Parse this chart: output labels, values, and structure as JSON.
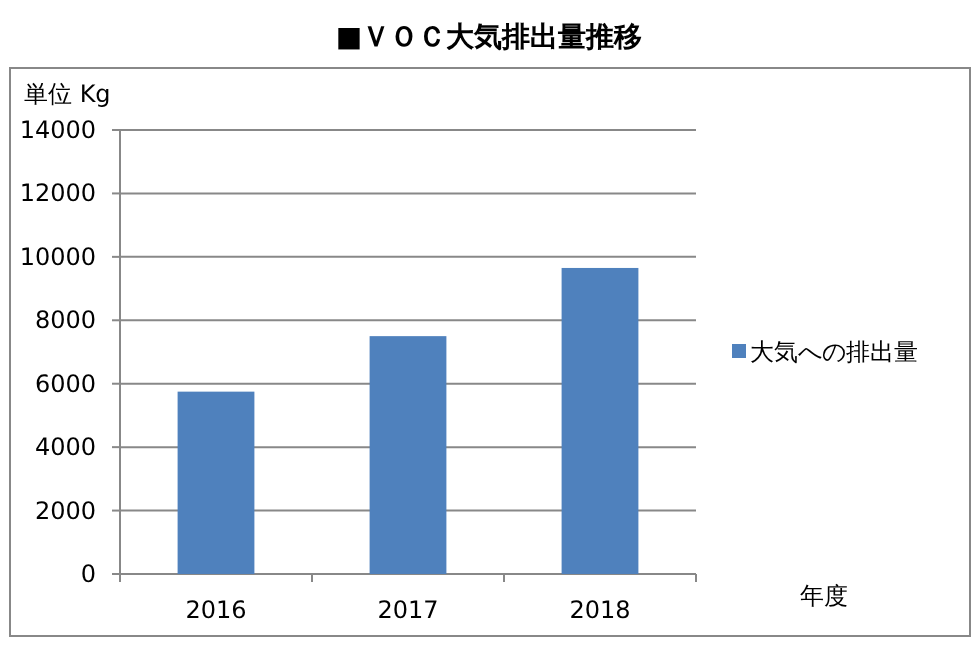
{
  "chart_data": {
    "type": "bar",
    "title": "■ＶＯＣ大気排出量推移",
    "ylabel": "単位 Kg",
    "xlabel": "年度",
    "categories": [
      "2016",
      "2017",
      "2018"
    ],
    "series": [
      {
        "name": "大気への排出量",
        "color": "#4f81bd",
        "values": [
          5750,
          7500,
          9650
        ]
      }
    ],
    "ylim": [
      0,
      14000
    ],
    "yticks": [
      0,
      2000,
      4000,
      6000,
      8000,
      10000,
      12000,
      14000
    ],
    "grid": "y",
    "legend": "right"
  }
}
